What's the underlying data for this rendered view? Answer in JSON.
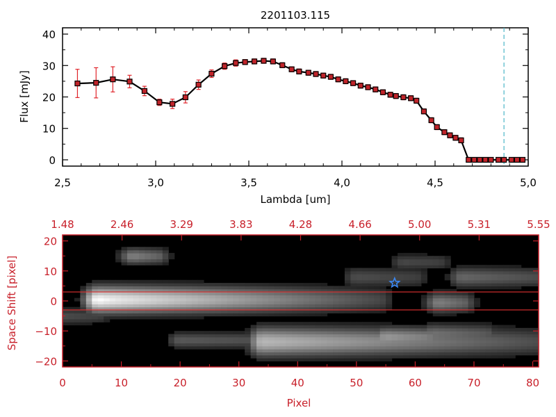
{
  "chart_data": [
    {
      "type": "line",
      "title": "2201103.115",
      "xlabel": "Lambda [um]",
      "ylabel": "Flux [mJy]",
      "xlim": [
        2.5,
        5.0
      ],
      "ylim": [
        -2,
        42
      ],
      "xticks": [
        2.5,
        3.0,
        3.5,
        4.0,
        4.5,
        5.0
      ],
      "xtick_labels": [
        "2,5",
        "3,0",
        "3,5",
        "4,0",
        "4,5",
        "5,0"
      ],
      "yticks": [
        0,
        10,
        20,
        30,
        40
      ],
      "ytick_labels": [
        "0",
        "10",
        "20",
        "30",
        "40"
      ],
      "grid": false,
      "series": [
        {
          "x": [
            2.58,
            2.68,
            2.77,
            2.86,
            2.94,
            3.02,
            3.09,
            3.16,
            3.23,
            3.3,
            3.37,
            3.43,
            3.48,
            3.53,
            3.58,
            3.63,
            3.68,
            3.73,
            3.77,
            3.82,
            3.86,
            3.9,
            3.94,
            3.98,
            4.02,
            4.06,
            4.1,
            4.14,
            4.18,
            4.22,
            4.26,
            4.29,
            4.33,
            4.37,
            4.4,
            4.44,
            4.48,
            4.51,
            4.55,
            4.58,
            4.61,
            4.64,
            4.68,
            4.71,
            4.74,
            4.77,
            4.8,
            4.84,
            4.87,
            4.91,
            4.94,
            4.97
          ],
          "y": [
            24.3,
            24.5,
            25.6,
            24.9,
            21.9,
            18.3,
            17.8,
            19.9,
            23.9,
            27.4,
            29.8,
            30.8,
            31.1,
            31.3,
            31.5,
            31.3,
            30.1,
            28.8,
            28.1,
            27.7,
            27.3,
            26.8,
            26.4,
            25.6,
            25.0,
            24.4,
            23.6,
            23.1,
            22.4,
            21.5,
            20.7,
            20.3,
            19.9,
            19.6,
            18.8,
            15.4,
            12.6,
            10.4,
            8.8,
            7.8,
            7.0,
            6.2,
            0,
            0,
            0,
            0,
            0,
            0,
            0,
            0,
            0,
            0
          ],
          "err": [
            4.5,
            4.8,
            4.0,
            2.0,
            1.5,
            1.0,
            1.5,
            1.8,
            1.5,
            1.2,
            1,
            1,
            0.8,
            0.8,
            0.8,
            0.8,
            0.8,
            0.8,
            0.8,
            0.8,
            0.8,
            0.8,
            0.8,
            0.8,
            0.8,
            0.8,
            0.8,
            0.8,
            0.8,
            0.8,
            0.8,
            0.8,
            0.8,
            0.8,
            0.8,
            0.8,
            0.8,
            0.8,
            0.8,
            0.8,
            0.8,
            0.8,
            0,
            0,
            0,
            0,
            0,
            0,
            0,
            0,
            0,
            0
          ]
        }
      ],
      "vline": {
        "x": 4.87,
        "color": "#4bb6c8",
        "style": "dashed"
      },
      "colors": {
        "line": "#000000",
        "errorbars": "#e0242a",
        "marker_fill": "#c0242a"
      }
    },
    {
      "type": "heatmap",
      "xlabel": "Pixel",
      "ylabel": "Space Shift [pixel]",
      "xlim": [
        0,
        81
      ],
      "ylim": [
        -22,
        22
      ],
      "xticks": [
        0,
        10,
        20,
        30,
        40,
        50,
        60,
        70,
        80
      ],
      "xtick_labels": [
        "0",
        "10",
        "20",
        "30",
        "40",
        "50",
        "60",
        "70",
        "80"
      ],
      "yticks": [
        20,
        10,
        0,
        -10,
        -20
      ],
      "ytick_labels": [
        "20",
        "10",
        "0",
        "−10",
        "−20"
      ],
      "top_axis_labels": [
        "1.48",
        "2.46",
        "3.29",
        "3.83",
        "4.28",
        "4.66",
        "5.00",
        "5.31",
        "5.55"
      ],
      "horizontal_lines": [
        3,
        -3
      ],
      "star_marker": {
        "x": 56.5,
        "y": 6,
        "color": "#3a86f0"
      },
      "colormap": "grayscale",
      "sources": [
        {
          "x0": 6,
          "x1": 54,
          "y": 0.5,
          "peak": 0.95,
          "fade_to": 0.28,
          "width": 3.2
        },
        {
          "x0": 6,
          "x1": 16,
          "y": 0.5,
          "peak": 1.0,
          "fade_to": 0.7,
          "width": 2.5
        },
        {
          "x0": 34,
          "x1": 81,
          "y": -13.5,
          "peak": 0.72,
          "fade_to": 0.3,
          "width": 3.5
        },
        {
          "x0": 55,
          "x1": 62,
          "y": -12,
          "peak": 0.6,
          "fade_to": 0.5,
          "width": 2.5
        },
        {
          "x0": 63,
          "x1": 72,
          "y": -11,
          "peak": 0.45,
          "fade_to": 0.35,
          "width": 2.5
        },
        {
          "x0": 12,
          "x1": 16,
          "y": 15,
          "peak": 0.5,
          "fade_to": 0.4,
          "width": 2
        },
        {
          "x0": 64,
          "x1": 68,
          "y": -0.5,
          "peak": 0.5,
          "fade_to": 0.4,
          "width": 2.5
        },
        {
          "x0": 68,
          "x1": 81,
          "y": 8,
          "peak": 0.4,
          "fade_to": 0.3,
          "width": 2.5
        },
        {
          "x0": 50,
          "x1": 60,
          "y": 8,
          "peak": 0.3,
          "fade_to": 0.25,
          "width": 2.5
        },
        {
          "x0": 20,
          "x1": 36,
          "y": -13,
          "peak": 0.35,
          "fade_to": 0.3,
          "width": 2
        },
        {
          "x0": 0,
          "x1": 6,
          "y": -5,
          "peak": 0.3,
          "fade_to": 0.25,
          "width": 2
        },
        {
          "x0": 58,
          "x1": 64,
          "y": 13,
          "peak": 0.28,
          "fade_to": 0.25,
          "width": 2
        }
      ],
      "colors": {
        "axes": "#c8202a",
        "lines": "#e03030"
      }
    }
  ]
}
